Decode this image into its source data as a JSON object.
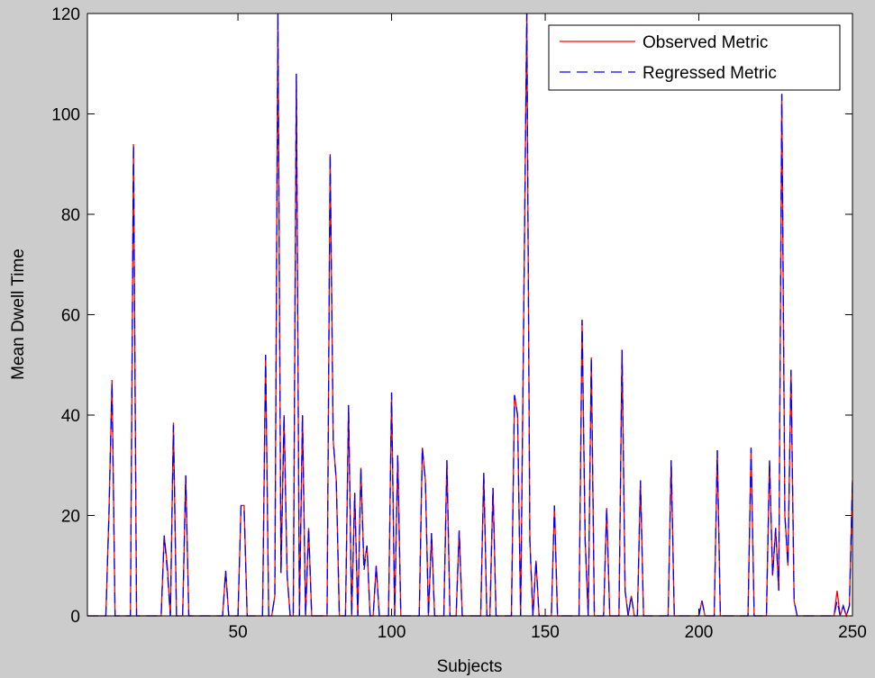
{
  "chart_data": {
    "type": "line",
    "x_label": "Subjects",
    "y_label": "Mean Dwell Time",
    "x": [
      1,
      2,
      3,
      4,
      5,
      6,
      7,
      8,
      9,
      10,
      11,
      12,
      13,
      14,
      15,
      16,
      17,
      18,
      19,
      20,
      21,
      22,
      23,
      24,
      25,
      26,
      27,
      28,
      29,
      30,
      31,
      32,
      33,
      34,
      35,
      36,
      37,
      38,
      39,
      40,
      41,
      42,
      43,
      44,
      45,
      46,
      47,
      48,
      49,
      50,
      51,
      52,
      53,
      54,
      55,
      56,
      57,
      58,
      59,
      60,
      61,
      62,
      63,
      64,
      65,
      66,
      67,
      68,
      69,
      70,
      71,
      72,
      73,
      74,
      75,
      76,
      77,
      78,
      79,
      80,
      81,
      82,
      83,
      84,
      85,
      86,
      87,
      88,
      89,
      90,
      91,
      92,
      93,
      94,
      95,
      96,
      97,
      98,
      99,
      100,
      101,
      102,
      103,
      104,
      105,
      106,
      107,
      108,
      109,
      110,
      111,
      112,
      113,
      114,
      115,
      116,
      117,
      118,
      119,
      120,
      121,
      122,
      123,
      124,
      125,
      126,
      127,
      128,
      129,
      130,
      131,
      132,
      133,
      134,
      135,
      136,
      137,
      138,
      139,
      140,
      141,
      142,
      143,
      144,
      145,
      146,
      147,
      148,
      149,
      150,
      151,
      152,
      153,
      154,
      155,
      156,
      157,
      158,
      159,
      160,
      161,
      162,
      163,
      164,
      165,
      166,
      167,
      168,
      169,
      170,
      171,
      172,
      173,
      174,
      175,
      176,
      177,
      178,
      179,
      180,
      181,
      182,
      183,
      184,
      185,
      186,
      187,
      188,
      189,
      190,
      191,
      192,
      193,
      194,
      195,
      196,
      197,
      198,
      199,
      200,
      201,
      202,
      203,
      204,
      205,
      206,
      207,
      208,
      209,
      210,
      211,
      212,
      213,
      214,
      215,
      216,
      217,
      218,
      219,
      220,
      221,
      222,
      223,
      224,
      225,
      226,
      227,
      228,
      229,
      230,
      231,
      232,
      233,
      234,
      235,
      236,
      237,
      238,
      239,
      240,
      241,
      242,
      243,
      244,
      245,
      246,
      247,
      248,
      249,
      250
    ],
    "series": [
      {
        "name": "Observed Metric",
        "color": "#ff0000",
        "dash": false,
        "values": [
          0,
          0,
          0,
          0,
          0,
          0,
          0,
          20,
          47,
          0,
          0,
          0,
          0,
          0,
          0,
          94,
          0,
          0,
          0,
          0,
          0,
          0,
          0,
          0,
          0,
          16,
          10,
          0,
          38.5,
          0,
          0,
          0,
          28,
          0,
          0,
          0,
          0,
          0,
          0,
          0,
          0,
          0,
          0,
          0,
          0,
          9,
          0,
          0,
          0,
          0,
          22,
          22,
          0,
          0,
          0,
          0,
          0,
          0,
          52,
          0,
          0,
          4,
          120,
          8.5,
          40,
          8,
          0,
          0,
          108,
          0,
          40,
          0,
          17.5,
          0,
          0,
          0,
          0,
          0,
          0,
          92,
          35,
          27,
          0,
          0,
          0,
          42,
          0,
          24.5,
          0,
          29.5,
          10,
          14,
          0,
          0,
          10,
          0,
          0,
          0,
          0,
          44.5,
          0,
          32,
          0,
          0,
          0,
          0,
          0,
          0,
          0,
          33.5,
          27,
          0,
          16.5,
          0,
          0,
          0,
          0,
          31,
          0,
          0,
          0,
          17,
          0,
          0,
          0,
          0,
          0,
          0,
          0,
          28.5,
          0,
          0,
          25.5,
          0,
          0,
          0,
          0,
          0,
          0,
          44,
          40,
          0,
          60,
          120,
          15,
          0,
          11,
          0,
          0,
          0,
          0,
          0,
          22,
          0,
          0,
          0,
          0,
          0,
          0,
          0,
          0,
          59,
          15,
          0,
          51.5,
          0,
          0,
          0,
          0,
          21.5,
          0,
          0,
          0,
          0,
          53,
          5,
          0,
          4,
          0,
          0,
          27,
          0,
          0,
          0,
          0,
          0,
          0,
          0,
          0,
          0,
          31,
          0,
          0,
          0,
          0,
          0,
          0,
          0,
          0,
          0,
          3,
          0,
          0,
          0,
          0,
          33,
          0,
          0,
          0,
          0,
          0,
          0,
          0,
          0,
          0,
          0,
          33.5,
          0,
          0,
          0,
          0,
          0,
          31,
          8,
          17.5,
          5,
          104,
          20,
          10,
          49,
          3,
          0,
          0,
          0,
          0,
          0,
          0,
          0,
          0,
          0,
          0,
          0,
          0,
          0,
          5,
          0,
          2,
          0,
          2,
          27
        ]
      },
      {
        "name": "Regressed Metric",
        "color": "#0000ff",
        "dash": true,
        "values": [
          0,
          0,
          0,
          0,
          0,
          0,
          0,
          20,
          46.5,
          0,
          0,
          0,
          0,
          0,
          0,
          94,
          0,
          0,
          0,
          0,
          0,
          0,
          0,
          0,
          0,
          16,
          9,
          0,
          38,
          0,
          0,
          0,
          28,
          0,
          0,
          0,
          0,
          0,
          0,
          0,
          0,
          0,
          0,
          0,
          0,
          9,
          0,
          0,
          0,
          0,
          22,
          21,
          0,
          0,
          0,
          0,
          0,
          0,
          52,
          0,
          0,
          4,
          120,
          8.5,
          40,
          8,
          0,
          0,
          108,
          0,
          40,
          0,
          17.5,
          0,
          0,
          0,
          0,
          0,
          0,
          92,
          35,
          27,
          0,
          0,
          0,
          42,
          0,
          24.5,
          0,
          29.5,
          9,
          14,
          0,
          0,
          10,
          0,
          0,
          0,
          0,
          44.5,
          0,
          32,
          0,
          0,
          0,
          0,
          0,
          0,
          0,
          33.5,
          27,
          0,
          16.5,
          0,
          0,
          0,
          0,
          31,
          0,
          0,
          0,
          17,
          0,
          0,
          0,
          0,
          0,
          0,
          0,
          28.5,
          0,
          0,
          25.5,
          0,
          0,
          0,
          0,
          0,
          0,
          44,
          40,
          0,
          60,
          120,
          15,
          0,
          11,
          0,
          0,
          0,
          0,
          0,
          22,
          0,
          0,
          0,
          0,
          0,
          0,
          0,
          0,
          59,
          15,
          0,
          51.5,
          0,
          0,
          0,
          0,
          21.5,
          0,
          0,
          0,
          0,
          53,
          5,
          0,
          4,
          0,
          0,
          27,
          0,
          0,
          0,
          0,
          0,
          0,
          0,
          0,
          0,
          31,
          0,
          0,
          0,
          0,
          0,
          0,
          0,
          0,
          0,
          3,
          0,
          0,
          0,
          0,
          33,
          0,
          0,
          0,
          0,
          0,
          0,
          0,
          0,
          0,
          0,
          33.5,
          0,
          0,
          0,
          0,
          0,
          31,
          8,
          17.5,
          5,
          104,
          20,
          10,
          49,
          3,
          0,
          0,
          0,
          0,
          0,
          0,
          0,
          0,
          0,
          0,
          0,
          0,
          0,
          3,
          0,
          2,
          0,
          2,
          27
        ]
      }
    ],
    "xlim": [
      1,
      250
    ],
    "xticks": [
      50,
      100,
      150,
      200,
      250
    ],
    "ylim": [
      0,
      120
    ],
    "yticks": [
      0,
      20,
      40,
      60,
      80,
      100,
      120
    ],
    "legend": "upper right",
    "grid": false
  }
}
